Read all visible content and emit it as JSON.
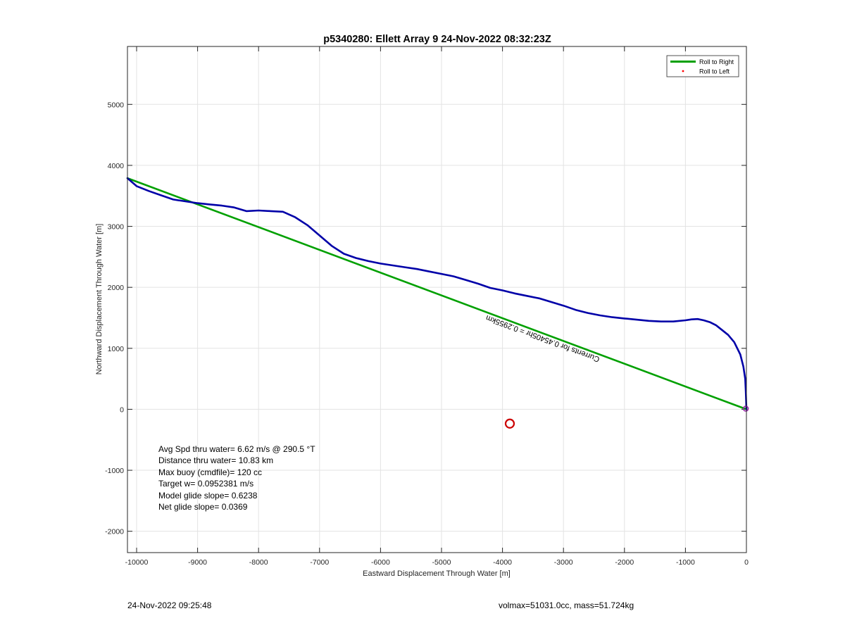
{
  "footer": {
    "timestamp": "24-Nov-2022 09:25:48",
    "vol_mass": "volmax=51031.0cc, mass=51.724kg"
  },
  "chart_data": {
    "type": "line",
    "title": "p5340280: Ellett Array 9 24-Nov-2022 08:32:23Z",
    "xlabel": "Eastward Displacement Through Water [m]",
    "ylabel": "Northward Displacement Through Water [m]",
    "xlim": [
      -10150,
      0
    ],
    "ylim": [
      -2350,
      5950
    ],
    "xticks": [
      -10000,
      -9000,
      -8000,
      -7000,
      -6000,
      -5000,
      -4000,
      -3000,
      -2000,
      -1000,
      0
    ],
    "yticks": [
      -2000,
      -1000,
      0,
      1000,
      2000,
      3000,
      4000,
      5000
    ],
    "grid": true,
    "legend": {
      "placement": "top-right",
      "entries": [
        {
          "label": "Roll to Right",
          "color": "#00a000",
          "style": "line"
        },
        {
          "label": "Roll to Left",
          "color": "#ff0000",
          "style": "point"
        }
      ]
    },
    "series": [
      {
        "color": "#00a000",
        "x": [
          0,
          -10150
        ],
        "y": [
          0,
          3790
        ]
      },
      {
        "color": "#0000a8",
        "x": [
          0,
          -10,
          -20,
          -50,
          -100,
          -200,
          -300,
          -400,
          -500,
          -600,
          -700,
          -800,
          -900,
          -1000,
          -1200,
          -1400,
          -1600,
          -1800,
          -2000,
          -2200,
          -2400,
          -2600,
          -2800,
          -3000,
          -3200,
          -3400,
          -3600,
          -3800,
          -4000,
          -4200,
          -4400,
          -4600,
          -4800,
          -5000,
          -5200,
          -5400,
          -5600,
          -5800,
          -6000,
          -6200,
          -6400,
          -6600,
          -6800,
          -7000,
          -7200,
          -7400,
          -7600,
          -7800,
          -8000,
          -8200,
          -8400,
          -8600,
          -8800,
          -9000,
          -9200,
          -9400,
          -9600,
          -9800,
          -10000,
          -10150
        ],
        "y": [
          0,
          300,
          500,
          700,
          900,
          1100,
          1220,
          1300,
          1380,
          1430,
          1460,
          1480,
          1475,
          1460,
          1440,
          1440,
          1450,
          1470,
          1490,
          1510,
          1540,
          1580,
          1630,
          1700,
          1760,
          1820,
          1860,
          1900,
          1950,
          1990,
          2060,
          2120,
          2180,
          2220,
          2260,
          2300,
          2330,
          2360,
          2390,
          2430,
          2480,
          2550,
          2680,
          2850,
          3020,
          3150,
          3240,
          3250,
          3260,
          3250,
          3310,
          3340,
          3360,
          3380,
          3410,
          3440,
          3510,
          3580,
          3660,
          3790
        ]
      }
    ],
    "markers": [
      {
        "x": -3880,
        "y": -235,
        "color": "#cc0000",
        "shape": "circle"
      }
    ],
    "annotations": {
      "stats": [
        "Avg Spd thru water=  6.62 m/s @ 290.5 °T",
        "Distance thru water= 10.83 km",
        "Max buoy (cmdfile)= 120 cc",
        "Target w= 0.0952381 m/s",
        "Model glide slope= 0.6238",
        "Net glide slope= 0.0369"
      ],
      "rotated_label": "Currents for 0.45405hr = 0.2955km",
      "rotated_label_anchor": {
        "x": -2400,
        "y": 850
      }
    }
  }
}
